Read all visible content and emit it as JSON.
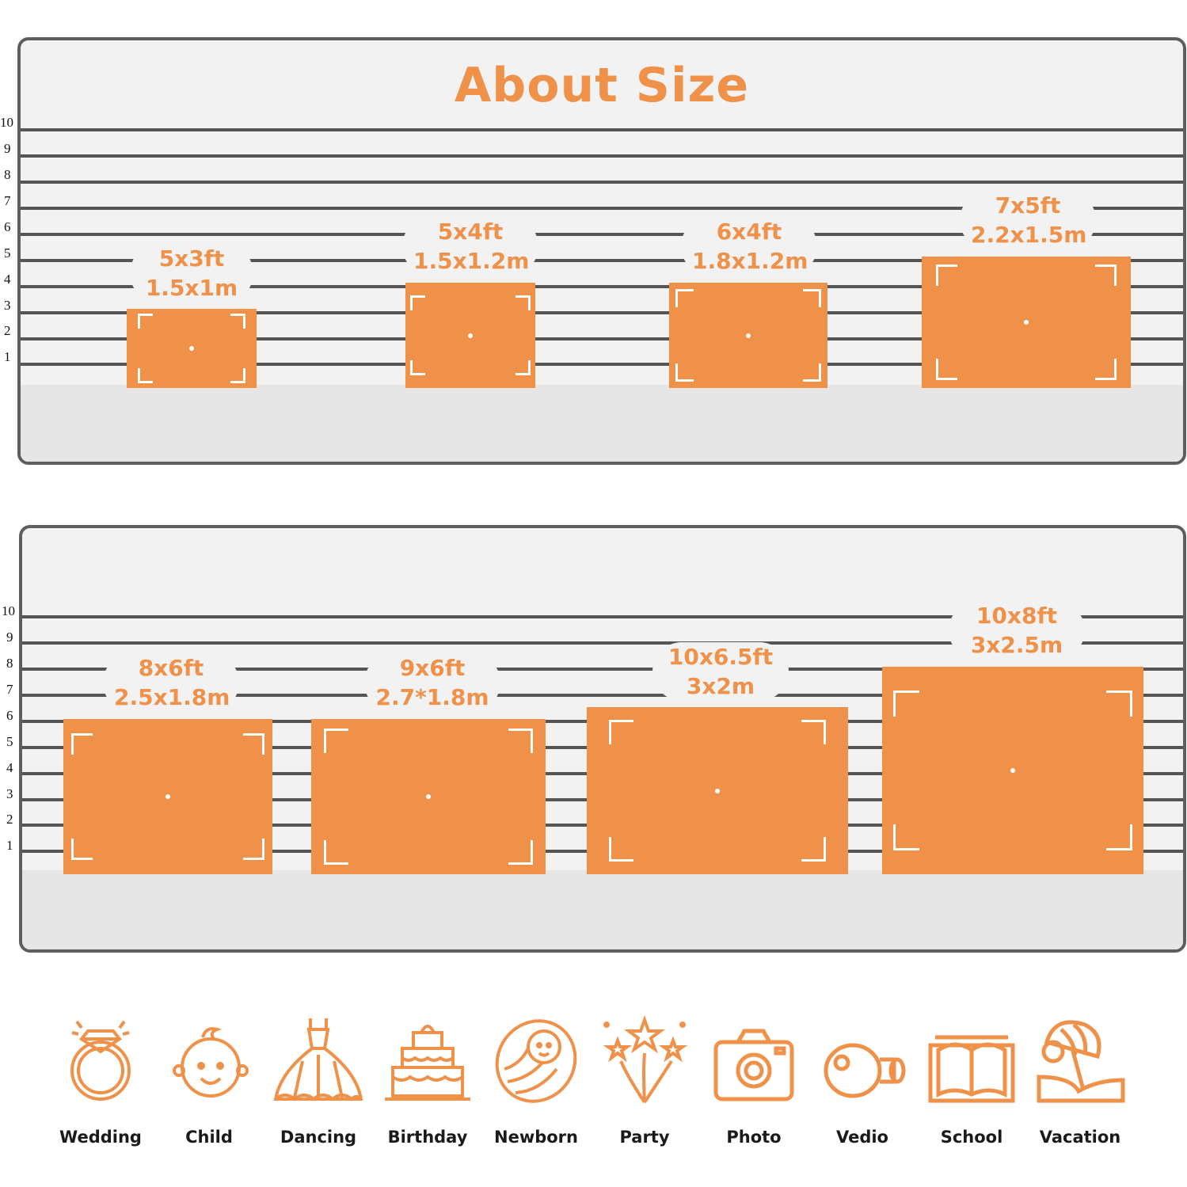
{
  "title": "About Size",
  "scale_ticks": [
    "10",
    "9",
    "8",
    "7",
    "6",
    "5",
    "4",
    "3",
    "2",
    "1"
  ],
  "panel1_sizes": [
    {
      "ft": "5x3ft",
      "m": "1.5x1m"
    },
    {
      "ft": "5x4ft",
      "m": "1.5x1.2m"
    },
    {
      "ft": "6x4ft",
      "m": "1.8x1.2m"
    },
    {
      "ft": "7x5ft",
      "m": "2.2x1.5m"
    }
  ],
  "panel2_sizes": [
    {
      "ft": "8x6ft",
      "m": "2.5x1.8m"
    },
    {
      "ft": "9x6ft",
      "m": "2.7*1.8m"
    },
    {
      "ft": "10x6.5ft",
      "m": "3x2m"
    },
    {
      "ft": "10x8ft",
      "m": "3x2.5m"
    }
  ],
  "uses": [
    {
      "label": "Wedding",
      "icon": "ring-icon"
    },
    {
      "label": "Child",
      "icon": "baby-face-icon"
    },
    {
      "label": "Dancing",
      "icon": "dress-icon"
    },
    {
      "label": "Birthday",
      "icon": "cake-icon"
    },
    {
      "label": "Newborn",
      "icon": "swaddled-baby-icon"
    },
    {
      "label": "Party",
      "icon": "fireworks-icon"
    },
    {
      "label": "Photo",
      "icon": "camera-icon"
    },
    {
      "label": "Vedio",
      "icon": "video-camera-icon"
    },
    {
      "label": "School",
      "icon": "book-icon"
    },
    {
      "label": "Vacation",
      "icon": "beach-umbrella-icon"
    }
  ],
  "colors": {
    "accent": "#f0914a",
    "panel": "#f2f2f2",
    "line": "#555555"
  }
}
